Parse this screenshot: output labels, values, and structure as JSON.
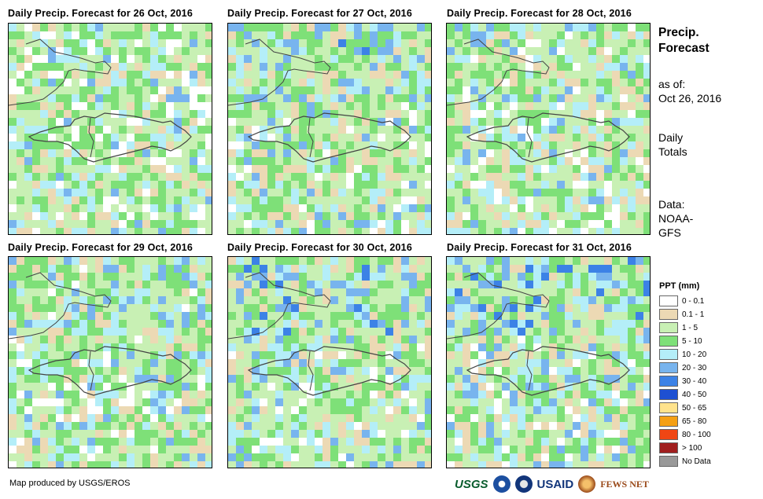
{
  "panels": [
    {
      "title": "Daily Precip. Forecast for 26 Oct, 2016",
      "seed": 11,
      "bias": 0
    },
    {
      "title": "Daily Precip. Forecast for 27 Oct, 2016",
      "seed": 23,
      "bias": 0.3
    },
    {
      "title": "Daily Precip. Forecast for 28 Oct, 2016",
      "seed": 37,
      "bias": 0.1
    },
    {
      "title": "Daily Precip. Forecast for 29 Oct, 2016",
      "seed": 41,
      "bias": 0.2
    },
    {
      "title": "Daily Precip. Forecast for 30 Oct, 2016",
      "seed": 53,
      "bias": 0.35
    },
    {
      "title": "Daily Precip. Forecast for 31 Oct, 2016",
      "seed": 67,
      "bias": 0.5
    }
  ],
  "side": {
    "title_line1": "Precip.",
    "title_line2": "Forecast",
    "asof_label": "as of:",
    "asof_date": "Oct 26, 2016",
    "totals_line1": "Daily",
    "totals_line2": "Totals",
    "data_line1": "Data:",
    "data_line2": "NOAA-",
    "data_line3": "GFS"
  },
  "legend": {
    "title": "PPT (mm)",
    "items": [
      {
        "label": "0 - 0.1",
        "color": "#ffffff"
      },
      {
        "label": "0.1 - 1",
        "color": "#ecd9b4"
      },
      {
        "label": "1 - 5",
        "color": "#c8f0b4"
      },
      {
        "label": "5 - 10",
        "color": "#7ee078"
      },
      {
        "label": "10 - 20",
        "color": "#b4eef8"
      },
      {
        "label": "20 - 30",
        "color": "#78b4ee"
      },
      {
        "label": "30 - 40",
        "color": "#3c82e6"
      },
      {
        "label": "40 - 50",
        "color": "#1e50d2"
      },
      {
        "label": "50 - 65",
        "color": "#ffe38c"
      },
      {
        "label": "65 - 80",
        "color": "#f5a014"
      },
      {
        "label": "80 - 100",
        "color": "#f04614"
      },
      {
        "label": "> 100",
        "color": "#a01e1e"
      },
      {
        "label": "No Data",
        "color": "#999999"
      }
    ]
  },
  "credit": "Map produced by USGS/EROS",
  "logos": {
    "usgs": "USGS",
    "usaid": "USAID",
    "fews": "FEWS NET"
  }
}
